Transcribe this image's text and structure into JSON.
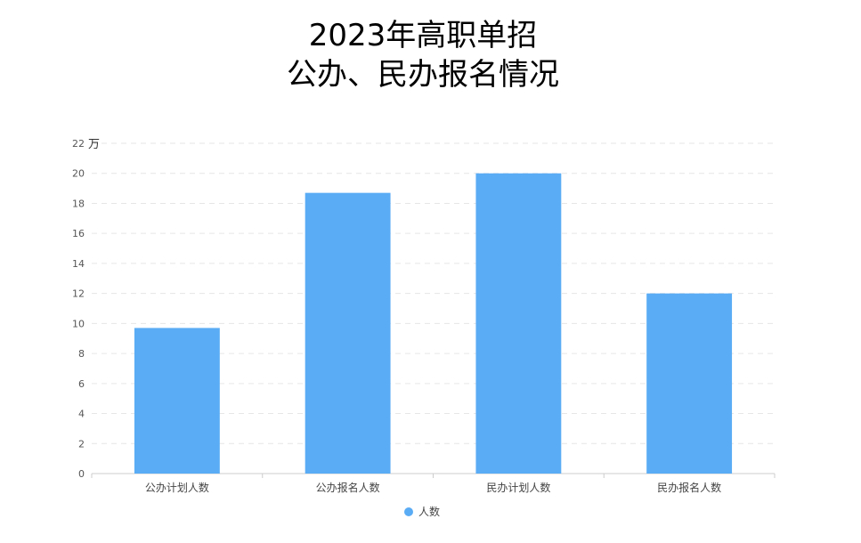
{
  "chart_data": {
    "type": "bar",
    "title_line1": "2023年高职单招",
    "title_line2": "公办、民办报名情况",
    "unit": "万",
    "categories": [
      "公办计划人数",
      "公办报名人数",
      "民办计划人数",
      "民办报名人数"
    ],
    "series": [
      {
        "name": "人数",
        "values": [
          9.7,
          18.7,
          20.0,
          12.0
        ]
      }
    ],
    "ylim": [
      0,
      22
    ],
    "yticks": [
      0,
      2,
      4,
      6,
      8,
      10,
      12,
      14,
      16,
      18,
      20,
      22
    ],
    "grid": true,
    "legend_position": "bottom-center",
    "colors": {
      "bar": "#5aacf5",
      "grid": "#e6e6e6",
      "axis": "#cccccc"
    }
  }
}
